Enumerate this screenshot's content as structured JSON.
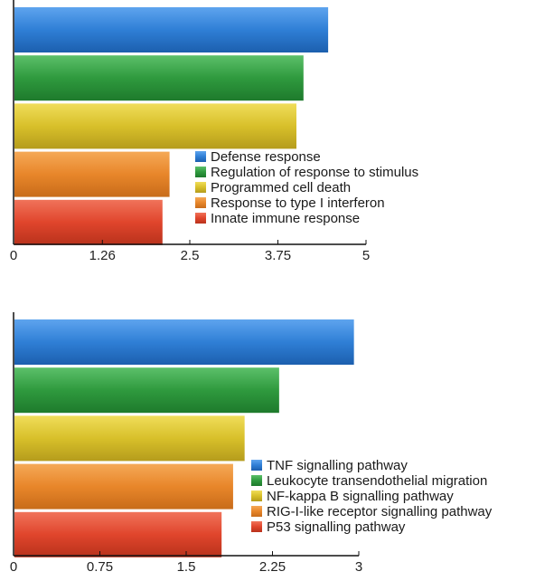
{
  "chart_data": [
    {
      "type": "bar",
      "orientation": "horizontal",
      "categories": [
        "Defense response",
        "Regulation of response to stimulus",
        "Programmed cell death",
        "Response to type I interferon",
        "Innate immune response"
      ],
      "values": [
        4.45,
        4.1,
        4.0,
        2.2,
        2.1
      ],
      "colors": [
        "#2f7fd6",
        "#2f9a3e",
        "#d8c02a",
        "#e8862a",
        "#e0452c"
      ],
      "xlim": [
        0,
        5
      ],
      "xticks": [
        "0",
        "1.26",
        "2.5",
        "3.75",
        "5"
      ],
      "xtick_values": [
        0,
        1.26,
        2.5,
        3.75,
        5
      ],
      "legend_position": "bottom-right",
      "grid": false
    },
    {
      "type": "bar",
      "orientation": "horizontal",
      "categories": [
        "TNF signalling pathway",
        "Leukocyte transendothelial migration",
        "NF-kappa B signalling pathway",
        "RIG-I-like receptor signalling pathway",
        "P53 signalling pathway"
      ],
      "values": [
        2.95,
        2.3,
        2.0,
        1.9,
        1.8
      ],
      "colors": [
        "#2f7fd6",
        "#2f9a3e",
        "#d8c02a",
        "#e8862a",
        "#e0452c"
      ],
      "xlim": [
        0,
        3
      ],
      "xticks": [
        "0",
        "0.75",
        "1.5",
        "2.25",
        "3"
      ],
      "xtick_values": [
        0,
        0.75,
        1.5,
        2.25,
        3
      ],
      "legend_position": "bottom-right",
      "grid": false
    }
  ]
}
